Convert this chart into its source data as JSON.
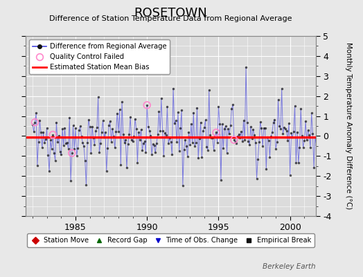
{
  "title": "ROSETOWN",
  "subtitle": "Difference of Station Temperature Data from Regional Average",
  "ylabel": "Monthly Temperature Anomaly Difference (°C)",
  "background_color": "#e8e8e8",
  "plot_bg_color": "#dcdcdc",
  "bias_value": -0.05,
  "ylim": [
    -4,
    5
  ],
  "xlim": [
    1981.5,
    2001.8
  ],
  "xticks": [
    1985,
    1990,
    1995,
    2000
  ],
  "yticks": [
    -4,
    -3,
    -2,
    -1,
    0,
    1,
    2,
    3,
    4,
    5
  ],
  "grid_color": "#ffffff",
  "line_color": "#4444dd",
  "line_alpha": 0.65,
  "dot_color": "#111111",
  "qc_fail_color": "#ff88cc",
  "bias_color": "#ff0000",
  "bias_lw": 2.5,
  "watermark": "Berkeley Earth",
  "start_year": 1982,
  "end_year": 2001,
  "seed": 42
}
